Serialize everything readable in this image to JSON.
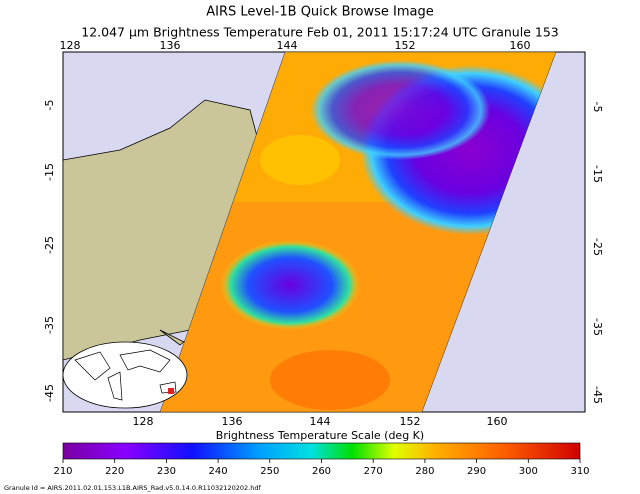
{
  "header": {
    "title": "AIRS Level-1B Quick Browse Image",
    "subtitle": "12.047 μm Brightness Temperature   Feb 01, 2011 15:17:24 UTC   Granule 153"
  },
  "map": {
    "top_lon_labels": [
      128,
      136,
      144,
      152,
      160
    ],
    "bottom_lon_labels": [
      128,
      136,
      144,
      152,
      160
    ],
    "left_lat_labels": [
      -5,
      -15,
      -25,
      -35,
      -45
    ],
    "right_lat_labels": [
      -5,
      -15,
      -25,
      -35,
      -45
    ]
  },
  "colorbar": {
    "title": "Brightness Temperature Scale (deg K)",
    "range": [
      210,
      310
    ],
    "ticks": [
      210,
      220,
      230,
      240,
      250,
      260,
      270,
      280,
      290,
      300,
      310
    ]
  },
  "footer": {
    "granule_id": "Granule Id = AIRS.2011.02.01.153.L1B.AIRS_Rad.v5.0.14.0.R11032120202.hdf"
  }
}
